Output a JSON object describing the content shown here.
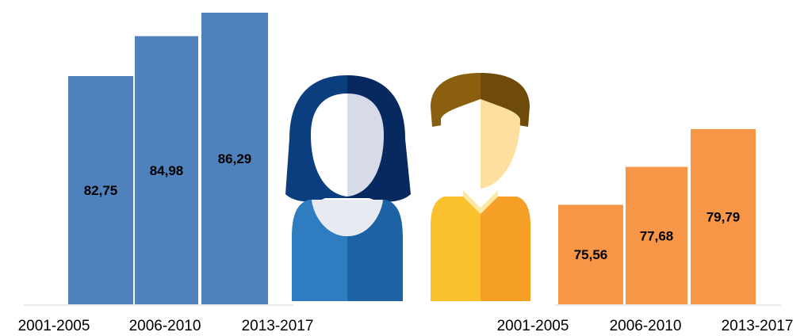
{
  "chart_data": [
    {
      "type": "bar",
      "categories": [
        "2001-2005",
        "2006-2010",
        "2013-2017"
      ],
      "values": [
        82.75,
        84.98,
        86.29
      ],
      "value_labels": [
        "82,75",
        "84,98",
        "86,29"
      ],
      "color": "#4f81bd",
      "ylim": [
        70,
        87
      ]
    },
    {
      "type": "bar",
      "categories": [
        "2001-2005",
        "2006-2010",
        "2013-2017"
      ],
      "values": [
        75.56,
        77.68,
        79.79
      ],
      "value_labels": [
        "75,56",
        "77,68",
        "79,79"
      ],
      "color": "#f79646",
      "ylim": [
        70,
        87
      ]
    }
  ]
}
